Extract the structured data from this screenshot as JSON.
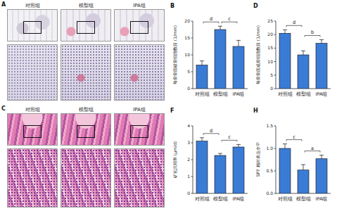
{
  "image_panels": [
    {
      "panel": "A",
      "columns": [
        "对照组",
        "模型组",
        "IPA组"
      ]
    },
    {
      "panel": "C",
      "columns": [
        "对照组",
        "模型组",
        "IPA组"
      ]
    }
  ],
  "chart_data": [
    {
      "panel": "B",
      "type": "bar",
      "y_label": "每骨骨面破骨细胞数目 (1/mm)",
      "categories": [
        "对照组",
        "模型组",
        "IPA组"
      ],
      "values": [
        7,
        17.5,
        12.5
      ],
      "errors": [
        1.2,
        1,
        1.8
      ],
      "color": "#3a7bd5",
      "ylim": [
        0,
        20
      ],
      "yticks": [
        0,
        5,
        10,
        15,
        20
      ],
      "significance": [
        {
          "from": 0,
          "to": 1,
          "label": "d"
        },
        {
          "from": 1,
          "to": 2,
          "label": "c"
        }
      ]
    },
    {
      "panel": "D",
      "type": "bar",
      "y_label": "每骨骨面成骨细胞数目 (1/mm)",
      "categories": [
        "对照组",
        "模型组",
        "IPA组"
      ],
      "values": [
        20.5,
        12.5,
        16.8
      ],
      "errors": [
        1.3,
        1.5,
        1.3
      ],
      "color": "#3a7bd5",
      "ylim": [
        0,
        25
      ],
      "yticks": [
        0,
        5,
        10,
        15,
        20,
        25
      ],
      "significance": [
        {
          "from": 0,
          "to": 1,
          "label": "d"
        },
        {
          "from": 1,
          "to": 2,
          "label": "b"
        }
      ]
    },
    {
      "panel": "F",
      "type": "bar",
      "y_label": "矿化沉积率 (μm/d)",
      "categories": [
        "对照组",
        "模型组",
        "IPA组"
      ],
      "values": [
        3.1,
        2.25,
        2.75
      ],
      "errors": [
        0.2,
        0.12,
        0.15
      ],
      "color": "#3a7bd5",
      "ylim": [
        0,
        4
      ],
      "yticks": [
        0,
        1,
        2,
        3,
        4
      ],
      "significance": [
        {
          "from": 0,
          "to": 1,
          "label": "d"
        },
        {
          "from": 1,
          "to": 2,
          "label": "c"
        }
      ]
    },
    {
      "panel": "H",
      "type": "bar",
      "y_label": "SP7 相对表达水平",
      "categories": [
        "对照组",
        "模型组",
        "IPA组"
      ],
      "values": [
        1.0,
        0.52,
        0.77
      ],
      "errors": [
        0.1,
        0.12,
        0.08
      ],
      "color": "#3a7bd5",
      "ylim": [
        0,
        1.5
      ],
      "yticks": [
        {
          "value": 0,
          "label": "0.0"
        },
        {
          "value": 0.5,
          "label": "0.5"
        },
        {
          "value": 1,
          "label": "1.0"
        },
        {
          "value": 1.5,
          "label": "1.5"
        }
      ],
      "significance": [
        {
          "from": 0,
          "to": 1,
          "label": "c"
        },
        {
          "from": 1,
          "to": 2,
          "label": "a"
        }
      ]
    }
  ]
}
